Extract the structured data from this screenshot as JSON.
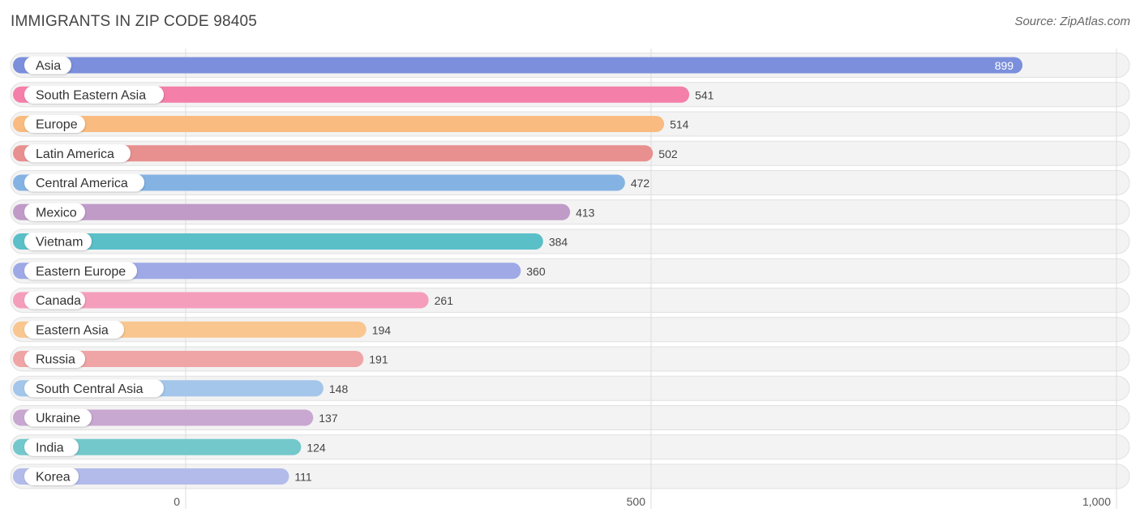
{
  "header": {
    "title": "IMMIGRANTS IN ZIP CODE 98405",
    "source": "Source: ZipAtlas.com"
  },
  "chart_data": {
    "type": "bar",
    "orientation": "horizontal",
    "title": "IMMIGRANTS IN ZIP CODE 98405",
    "xlim": [
      0,
      1000
    ],
    "ticks": [
      0,
      500,
      1000
    ],
    "tick_labels": [
      "0",
      "500",
      "1,000"
    ],
    "grid": true,
    "categories": [
      "Asia",
      "South Eastern Asia",
      "Europe",
      "Latin America",
      "Central America",
      "Mexico",
      "Vietnam",
      "Eastern Europe",
      "Canada",
      "Eastern Asia",
      "Russia",
      "South Central Asia",
      "Ukraine",
      "India",
      "Korea"
    ],
    "values": [
      899,
      541,
      514,
      502,
      472,
      413,
      384,
      360,
      261,
      194,
      191,
      148,
      137,
      124,
      111
    ],
    "value_labels": [
      "899",
      "541",
      "514",
      "502",
      "472",
      "413",
      "384",
      "360",
      "261",
      "194",
      "191",
      "148",
      "137",
      "124",
      "111"
    ],
    "colors": [
      "#7b8fdc",
      "#f47fa8",
      "#f9bb80",
      "#e8908f",
      "#84b3e3",
      "#c09bc8",
      "#5bbfc8",
      "#9ea9e6",
      "#f59ebc",
      "#f9c68f",
      "#efa5a5",
      "#a3c6ea",
      "#c8a7d0",
      "#73c8cc",
      "#b2bbea"
    ]
  }
}
